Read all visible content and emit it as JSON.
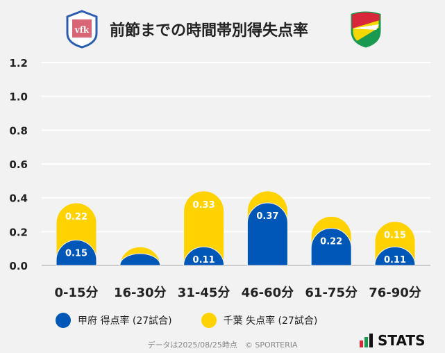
{
  "title": "前節までの時間帯別得失点率",
  "logos": {
    "home": "ヴァンフォーレ甲府 crest",
    "away": "ジェフユナイテッド千葉 crest"
  },
  "chart_data": {
    "type": "bar",
    "stacked": true,
    "categories": [
      "0-15分",
      "16-30分",
      "31-45分",
      "46-60分",
      "61-75分",
      "76-90分"
    ],
    "series": [
      {
        "name": "甲府 得点率 (27試合)",
        "color": "#0057b7",
        "values": [
          0.15,
          0.07,
          0.11,
          0.37,
          0.22,
          0.11
        ],
        "labels": [
          "0.15",
          "",
          "0.11",
          "0.37",
          "0.22",
          "0.11"
        ]
      },
      {
        "name": "千葉 失点率 (27試合)",
        "color": "#ffd200",
        "values": [
          0.22,
          0.04,
          0.33,
          0.07,
          0.07,
          0.15
        ],
        "labels": [
          "0.22",
          "",
          "0.33",
          "",
          "",
          "0.15"
        ]
      }
    ],
    "ylim": [
      0,
      1.2
    ],
    "yticks": [
      "0.0",
      "0.2",
      "0.4",
      "0.6",
      "0.8",
      "1.0",
      "1.2"
    ],
    "grid": true,
    "legend": "bottom"
  },
  "footer": "データは2025/08/25時点　© SPORTERIA",
  "brand": "STATS"
}
